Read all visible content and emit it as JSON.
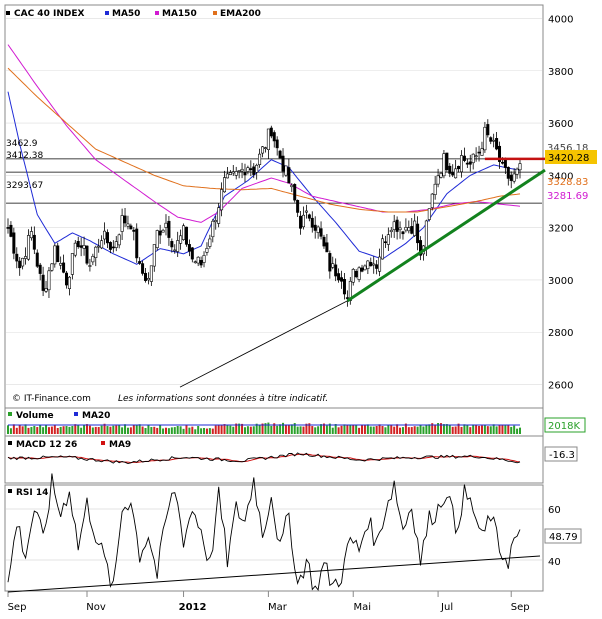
{
  "colors": {
    "price": "#000000",
    "ma50": "#1f2bd6",
    "ma150": "#d11bd1",
    "ema200": "#e0701c",
    "support": "#12821e",
    "resistance": "#c41111",
    "last_price_bg": "#f5c400",
    "volume_up": "#2aa02a",
    "volume_down": "#d22222",
    "macd": "#000000",
    "macd_signal": "#d11111",
    "grid": "#dcdcdc"
  },
  "header": {
    "title": "CAC 40 INDEX",
    "ma50": "MA50",
    "ma150": "MA150",
    "ema200": "EMA200"
  },
  "footer": {
    "copyright": "© IT-Finance.com",
    "disclaimer": "Les informations sont données à titre indicatif."
  },
  "levels": {
    "left": [
      "3462.9",
      "3412.38",
      "3293.67"
    ],
    "right": [
      "3456.18",
      "3420.28",
      "3328.83",
      "3281.69"
    ]
  },
  "volume_panel": {
    "label": "Volume",
    "ma_label": "MA20",
    "value": "2018K"
  },
  "macd_panel": {
    "label": "MACD 12 26",
    "signal_label": "MA9",
    "value": "-16.3"
  },
  "rsi_panel": {
    "label": "RSI 14",
    "value": "48.79"
  },
  "chart_data": {
    "type": "line",
    "title": "CAC 40 INDEX",
    "x_labels": [
      "Sep",
      "Nov",
      "2012",
      "Mar",
      "Mai",
      "Jul",
      "Sep"
    ],
    "y_ticks": [
      2600,
      2800,
      3000,
      3200,
      3400,
      3600,
      3800,
      4000
    ],
    "ylim": [
      2560,
      4040
    ],
    "price_anchors": [
      [
        0,
        3200
      ],
      [
        4,
        3050
      ],
      [
        8,
        3180
      ],
      [
        12,
        2950
      ],
      [
        16,
        3120
      ],
      [
        20,
        3000
      ],
      [
        24,
        3150
      ],
      [
        28,
        3060
      ],
      [
        32,
        3170
      ],
      [
        36,
        3120
      ],
      [
        39,
        3230
      ],
      [
        42,
        3220
      ],
      [
        45,
        3040
      ],
      [
        48,
        3000
      ],
      [
        51,
        3180
      ],
      [
        54,
        3220
      ],
      [
        57,
        3120
      ],
      [
        60,
        3180
      ],
      [
        63,
        3080
      ],
      [
        66,
        3060
      ],
      [
        70,
        3210
      ],
      [
        74,
        3370
      ],
      [
        78,
        3400
      ],
      [
        82,
        3440
      ],
      [
        84,
        3420
      ],
      [
        88,
        3520
      ],
      [
        90,
        3580
      ],
      [
        92,
        3500
      ],
      [
        94,
        3440
      ],
      [
        97,
        3340
      ],
      [
        100,
        3220
      ],
      [
        103,
        3250
      ],
      [
        106,
        3190
      ],
      [
        110,
        3050
      ],
      [
        114,
        3020
      ],
      [
        116,
        2930
      ],
      [
        118,
        3020
      ],
      [
        121,
        3060
      ],
      [
        124,
        3080
      ],
      [
        126,
        3060
      ],
      [
        128,
        3140
      ],
      [
        131,
        3220
      ],
      [
        135,
        3200
      ],
      [
        139,
        3210
      ],
      [
        141,
        3080
      ],
      [
        143,
        3200
      ],
      [
        146,
        3380
      ],
      [
        149,
        3460
      ],
      [
        152,
        3420
      ],
      [
        155,
        3470
      ],
      [
        158,
        3440
      ],
      [
        161,
        3490
      ],
      [
        163,
        3560
      ],
      [
        165,
        3530
      ],
      [
        167,
        3490
      ],
      [
        169,
        3420
      ],
      [
        172,
        3380
      ],
      [
        175,
        3420
      ]
    ],
    "series": [
      {
        "name": "MA50",
        "anchors": [
          [
            0,
            3720
          ],
          [
            4,
            3520
          ],
          [
            10,
            3250
          ],
          [
            16,
            3140
          ],
          [
            22,
            3180
          ],
          [
            28,
            3150
          ],
          [
            36,
            3100
          ],
          [
            44,
            3060
          ],
          [
            52,
            3120
          ],
          [
            60,
            3100
          ],
          [
            66,
            3130
          ],
          [
            74,
            3320
          ],
          [
            82,
            3380
          ],
          [
            90,
            3460
          ],
          [
            96,
            3430
          ],
          [
            104,
            3320
          ],
          [
            112,
            3220
          ],
          [
            120,
            3110
          ],
          [
            128,
            3080
          ],
          [
            136,
            3140
          ],
          [
            142,
            3200
          ],
          [
            150,
            3330
          ],
          [
            158,
            3400
          ],
          [
            166,
            3440
          ],
          [
            170,
            3430
          ],
          [
            175,
            3420
          ]
        ]
      },
      {
        "name": "MA150",
        "anchors": [
          [
            0,
            3900
          ],
          [
            10,
            3740
          ],
          [
            20,
            3590
          ],
          [
            30,
            3460
          ],
          [
            40,
            3380
          ],
          [
            50,
            3300
          ],
          [
            58,
            3240
          ],
          [
            66,
            3220
          ],
          [
            72,
            3260
          ],
          [
            80,
            3350
          ],
          [
            90,
            3390
          ],
          [
            96,
            3370
          ],
          [
            104,
            3320
          ],
          [
            112,
            3300
          ],
          [
            120,
            3280
          ],
          [
            128,
            3260
          ],
          [
            136,
            3260
          ],
          [
            144,
            3270
          ],
          [
            152,
            3290
          ],
          [
            160,
            3300
          ],
          [
            168,
            3290
          ],
          [
            175,
            3282
          ]
        ]
      },
      {
        "name": "EMA200",
        "anchors": [
          [
            0,
            3810
          ],
          [
            10,
            3700
          ],
          [
            20,
            3600
          ],
          [
            30,
            3500
          ],
          [
            40,
            3450
          ],
          [
            50,
            3400
          ],
          [
            60,
            3360
          ],
          [
            70,
            3350
          ],
          [
            80,
            3345
          ],
          [
            90,
            3350
          ],
          [
            100,
            3320
          ],
          [
            110,
            3290
          ],
          [
            120,
            3270
          ],
          [
            130,
            3260
          ],
          [
            140,
            3260
          ],
          [
            150,
            3280
          ],
          [
            160,
            3300
          ],
          [
            168,
            3320
          ],
          [
            175,
            3329
          ]
        ]
      }
    ],
    "resistance_lines": [
      3462.9,
      3412.38,
      3293.67
    ],
    "last_price": 3420.28,
    "rsi_levels": [
      40,
      60
    ],
    "rsi_anchors": [
      [
        0,
        30
      ],
      [
        3,
        55
      ],
      [
        6,
        42
      ],
      [
        9,
        60
      ],
      [
        12,
        48
      ],
      [
        15,
        70
      ],
      [
        18,
        58
      ],
      [
        21,
        68
      ],
      [
        24,
        45
      ],
      [
        27,
        62
      ],
      [
        30,
        50
      ],
      [
        33,
        40
      ],
      [
        36,
        28
      ],
      [
        39,
        60
      ],
      [
        42,
        64
      ],
      [
        45,
        42
      ],
      [
        48,
        50
      ],
      [
        51,
        34
      ],
      [
        54,
        56
      ],
      [
        57,
        68
      ],
      [
        60,
        48
      ],
      [
        63,
        60
      ],
      [
        66,
        52
      ],
      [
        69,
        38
      ],
      [
        72,
        65
      ],
      [
        75,
        40
      ],
      [
        78,
        60
      ],
      [
        81,
        55
      ],
      [
        84,
        72
      ],
      [
        87,
        50
      ],
      [
        90,
        66
      ],
      [
        93,
        44
      ],
      [
        96,
        58
      ],
      [
        99,
        30
      ],
      [
        102,
        40
      ],
      [
        105,
        28
      ],
      [
        108,
        38
      ],
      [
        111,
        30
      ],
      [
        114,
        34
      ],
      [
        117,
        48
      ],
      [
        120,
        44
      ],
      [
        123,
        56
      ],
      [
        126,
        46
      ],
      [
        129,
        60
      ],
      [
        132,
        70
      ],
      [
        135,
        52
      ],
      [
        138,
        62
      ],
      [
        141,
        40
      ],
      [
        144,
        56
      ],
      [
        147,
        60
      ],
      [
        150,
        68
      ],
      [
        153,
        52
      ],
      [
        156,
        66
      ],
      [
        159,
        60
      ],
      [
        162,
        48
      ],
      [
        165,
        58
      ],
      [
        168,
        44
      ],
      [
        171,
        40
      ],
      [
        173,
        48
      ],
      [
        175,
        49
      ]
    ],
    "macd_anchors": [
      [
        0,
        5
      ],
      [
        20,
        10
      ],
      [
        40,
        -20
      ],
      [
        60,
        10
      ],
      [
        80,
        -10
      ],
      [
        100,
        30
      ],
      [
        120,
        -5
      ],
      [
        140,
        10
      ],
      [
        160,
        15
      ],
      [
        175,
        -16
      ]
    ],
    "volume_anchors": [
      [
        0,
        0.55
      ],
      [
        40,
        0.6
      ],
      [
        60,
        0.45
      ],
      [
        90,
        0.7
      ],
      [
        120,
        0.55
      ],
      [
        150,
        0.65
      ],
      [
        175,
        0.5
      ]
    ]
  }
}
